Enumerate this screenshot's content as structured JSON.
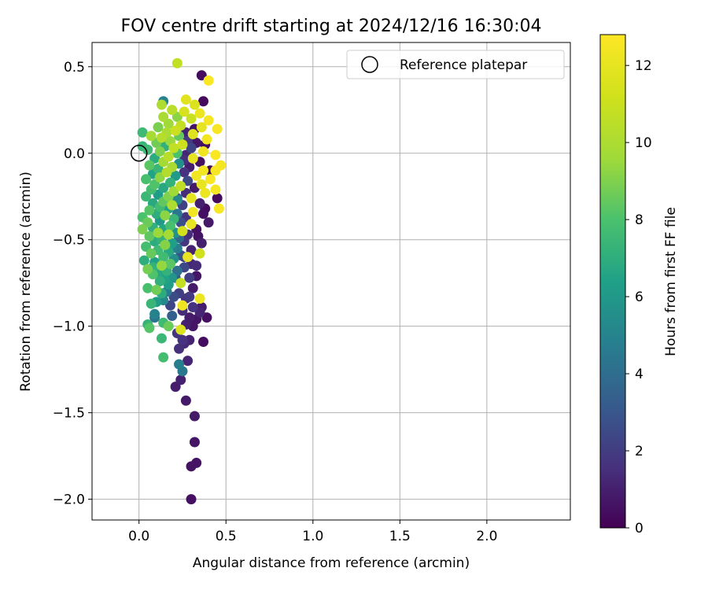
{
  "chart_data": {
    "type": "scatter",
    "title": "FOV centre drift starting at 2024/12/16 16:30:04",
    "xlabel": "Angular distance from reference (arcmin)",
    "ylabel": "Rotation from reference (arcmin)",
    "xlim": [
      -0.27,
      2.48
    ],
    "ylim": [
      -2.12,
      0.64
    ],
    "xticks": [
      0.0,
      0.5,
      1.0,
      1.5,
      2.0
    ],
    "xtick_labels": [
      "0.0",
      "0.5",
      "1.0",
      "1.5",
      "2.0"
    ],
    "yticks": [
      0.5,
      0.0,
      -0.5,
      -1.0,
      -1.5,
      -2.0
    ],
    "ytick_labels": [
      "0.5",
      "0.0",
      "−0.5",
      "−1.0",
      "−1.5",
      "−2.0"
    ],
    "grid": true,
    "legend": {
      "position": "upper right",
      "entries": [
        "Reference platepar"
      ]
    },
    "reference_point": {
      "x": 0.0,
      "y": 0.0
    },
    "colorbar": {
      "label": "Hours from first FF file",
      "colormap": "viridis",
      "range": [
        0,
        12.8
      ],
      "ticks": [
        0,
        2,
        4,
        6,
        8,
        10,
        12
      ],
      "tick_labels": [
        "0",
        "2",
        "4",
        "6",
        "8",
        "10",
        "12"
      ]
    },
    "points": [
      {
        "x": 0.3,
        "y": -2.0,
        "t": 0.5
      },
      {
        "x": 0.3,
        "y": -1.81,
        "t": 0.6
      },
      {
        "x": 0.33,
        "y": -1.79,
        "t": 0.6
      },
      {
        "x": 0.32,
        "y": -1.67,
        "t": 0.7
      },
      {
        "x": 0.32,
        "y": -1.52,
        "t": 0.8
      },
      {
        "x": 0.27,
        "y": -1.43,
        "t": 0.8
      },
      {
        "x": 0.21,
        "y": -1.35,
        "t": 0.9
      },
      {
        "x": 0.24,
        "y": -1.31,
        "t": 1.0
      },
      {
        "x": 0.25,
        "y": -1.26,
        "t": 4.5
      },
      {
        "x": 0.23,
        "y": -1.22,
        "t": 4.8
      },
      {
        "x": 0.28,
        "y": -1.2,
        "t": 1.2
      },
      {
        "x": 0.14,
        "y": -1.18,
        "t": 7.8
      },
      {
        "x": 0.23,
        "y": -1.13,
        "t": 1.5
      },
      {
        "x": 0.26,
        "y": -1.1,
        "t": 1.3
      },
      {
        "x": 0.37,
        "y": -1.09,
        "t": 0.4
      },
      {
        "x": 0.29,
        "y": -1.08,
        "t": 1.1
      },
      {
        "x": 0.13,
        "y": -1.07,
        "t": 7.5
      },
      {
        "x": 0.22,
        "y": -1.04,
        "t": 1.7
      },
      {
        "x": 0.24,
        "y": -1.02,
        "t": 11.6
      },
      {
        "x": 0.06,
        "y": -1.01,
        "t": 8.2
      },
      {
        "x": 0.05,
        "y": -0.99,
        "t": 7.3
      },
      {
        "x": 0.14,
        "y": -0.98,
        "t": 7.6
      },
      {
        "x": 0.17,
        "y": -1.0,
        "t": 8.6
      },
      {
        "x": 0.27,
        "y": -0.99,
        "t": 1.0
      },
      {
        "x": 0.39,
        "y": -0.95,
        "t": 0.5
      },
      {
        "x": 0.33,
        "y": -0.96,
        "t": 0.7
      },
      {
        "x": 0.35,
        "y": -0.92,
        "t": 1.2
      },
      {
        "x": 0.09,
        "y": -0.93,
        "t": 5.0
      },
      {
        "x": 0.25,
        "y": -0.91,
        "t": 1.4
      },
      {
        "x": 0.31,
        "y": -0.89,
        "t": 1.6
      },
      {
        "x": 0.36,
        "y": -0.89,
        "t": 0.9
      },
      {
        "x": 0.25,
        "y": -0.88,
        "t": 12.3
      },
      {
        "x": 0.07,
        "y": -0.87,
        "t": 7.4
      },
      {
        "x": 0.1,
        "y": -0.86,
        "t": 6.1
      },
      {
        "x": 0.14,
        "y": -0.85,
        "t": 5.2
      },
      {
        "x": 0.35,
        "y": -0.84,
        "t": 12.2
      },
      {
        "x": 0.2,
        "y": -0.83,
        "t": 2.6
      },
      {
        "x": 0.29,
        "y": -0.83,
        "t": 1.9
      },
      {
        "x": 0.23,
        "y": -0.81,
        "t": 2.1
      },
      {
        "x": 0.13,
        "y": -0.81,
        "t": 6.9
      },
      {
        "x": 0.1,
        "y": -0.79,
        "t": 8.7
      },
      {
        "x": 0.31,
        "y": -0.78,
        "t": 0.8
      },
      {
        "x": 0.05,
        "y": -0.78,
        "t": 7.9
      },
      {
        "x": 0.17,
        "y": -0.76,
        "t": 6.2
      },
      {
        "x": 0.24,
        "y": -0.75,
        "t": 10.8
      },
      {
        "x": 0.12,
        "y": -0.74,
        "t": 7.1
      },
      {
        "x": 0.15,
        "y": -0.73,
        "t": 6.5
      },
      {
        "x": 0.19,
        "y": -0.72,
        "t": 5.8
      },
      {
        "x": 0.29,
        "y": -0.72,
        "t": 2.0
      },
      {
        "x": 0.33,
        "y": -0.71,
        "t": 0.7
      },
      {
        "x": 0.08,
        "y": -0.7,
        "t": 8.1
      },
      {
        "x": 0.11,
        "y": -0.69,
        "t": 6.7
      },
      {
        "x": 0.16,
        "y": -0.68,
        "t": 7.2
      },
      {
        "x": 0.22,
        "y": -0.68,
        "t": 4.1
      },
      {
        "x": 0.05,
        "y": -0.67,
        "t": 8.8
      },
      {
        "x": 0.26,
        "y": -0.66,
        "t": 2.4
      },
      {
        "x": 0.13,
        "y": -0.65,
        "t": 9.4
      },
      {
        "x": 0.18,
        "y": -0.64,
        "t": 8.3
      },
      {
        "x": 0.3,
        "y": -0.64,
        "t": 1.3
      },
      {
        "x": 0.09,
        "y": -0.63,
        "t": 6.4
      },
      {
        "x": 0.03,
        "y": -0.62,
        "t": 7.0
      },
      {
        "x": 0.2,
        "y": -0.61,
        "t": 5.5
      },
      {
        "x": 0.14,
        "y": -0.6,
        "t": 7.7
      },
      {
        "x": 0.28,
        "y": -0.6,
        "t": 12.1
      },
      {
        "x": 0.35,
        "y": -0.58,
        "t": 11.2
      },
      {
        "x": 0.24,
        "y": -0.59,
        "t": 2.9
      },
      {
        "x": 0.07,
        "y": -0.58,
        "t": 8.5
      },
      {
        "x": 0.17,
        "y": -0.57,
        "t": 6.8
      },
      {
        "x": 0.11,
        "y": -0.56,
        "t": 7.6
      },
      {
        "x": 0.3,
        "y": -0.56,
        "t": 1.1
      },
      {
        "x": 0.22,
        "y": -0.55,
        "t": 4.7
      },
      {
        "x": 0.04,
        "y": -0.54,
        "t": 7.8
      },
      {
        "x": 0.15,
        "y": -0.53,
        "t": 9.1
      },
      {
        "x": 0.19,
        "y": -0.52,
        "t": 6.3
      },
      {
        "x": 0.09,
        "y": -0.51,
        "t": 6.9
      },
      {
        "x": 0.26,
        "y": -0.51,
        "t": 1.8
      },
      {
        "x": 0.13,
        "y": -0.5,
        "t": 7.3
      },
      {
        "x": 0.23,
        "y": -0.49,
        "t": 3.8
      },
      {
        "x": 0.06,
        "y": -0.48,
        "t": 8.4
      },
      {
        "x": 0.17,
        "y": -0.47,
        "t": 9.8
      },
      {
        "x": 0.28,
        "y": -0.47,
        "t": 1.5
      },
      {
        "x": 0.11,
        "y": -0.46,
        "t": 9.5
      },
      {
        "x": 0.21,
        "y": -0.46,
        "t": 5.7
      },
      {
        "x": 0.25,
        "y": -0.45,
        "t": 11.3
      },
      {
        "x": 0.02,
        "y": -0.44,
        "t": 8.9
      },
      {
        "x": 0.14,
        "y": -0.44,
        "t": 6.6
      },
      {
        "x": 0.33,
        "y": -0.44,
        "t": 0.6
      },
      {
        "x": 0.08,
        "y": -0.43,
        "t": 7.1
      },
      {
        "x": 0.18,
        "y": -0.42,
        "t": 7.9
      },
      {
        "x": 0.3,
        "y": -0.41,
        "t": 12.0
      },
      {
        "x": 0.24,
        "y": -0.4,
        "t": 2.7
      },
      {
        "x": 0.05,
        "y": -0.4,
        "t": 8.6
      },
      {
        "x": 0.12,
        "y": -0.39,
        "t": 6.0
      },
      {
        "x": 0.2,
        "y": -0.38,
        "t": 7.4
      },
      {
        "x": 0.02,
        "y": -0.37,
        "t": 8.0
      },
      {
        "x": 0.27,
        "y": -0.37,
        "t": 1.7
      },
      {
        "x": 0.15,
        "y": -0.36,
        "t": 9.2
      },
      {
        "x": 0.1,
        "y": -0.35,
        "t": 7.0
      },
      {
        "x": 0.22,
        "y": -0.35,
        "t": 4.4
      },
      {
        "x": 0.31,
        "y": -0.34,
        "t": 12.4
      },
      {
        "x": 0.06,
        "y": -0.33,
        "t": 8.2
      },
      {
        "x": 0.17,
        "y": -0.32,
        "t": 6.4
      },
      {
        "x": 0.38,
        "y": -0.32,
        "t": 0.4
      },
      {
        "x": 0.46,
        "y": -0.32,
        "t": 12.6
      },
      {
        "x": 0.12,
        "y": -0.31,
        "t": 7.7
      },
      {
        "x": 0.25,
        "y": -0.3,
        "t": 2.2
      },
      {
        "x": 0.19,
        "y": -0.3,
        "t": 10.1
      },
      {
        "x": 0.08,
        "y": -0.29,
        "t": 6.8
      },
      {
        "x": 0.35,
        "y": -0.29,
        "t": 1.0
      },
      {
        "x": 0.14,
        "y": -0.28,
        "t": 8.4
      },
      {
        "x": 0.22,
        "y": -0.27,
        "t": 5.2
      },
      {
        "x": 0.3,
        "y": -0.26,
        "t": 11.9
      },
      {
        "x": 0.45,
        "y": -0.26,
        "t": 0.3
      },
      {
        "x": 0.04,
        "y": -0.25,
        "t": 7.5
      },
      {
        "x": 0.17,
        "y": -0.25,
        "t": 9.0
      },
      {
        "x": 0.11,
        "y": -0.24,
        "t": 6.2
      },
      {
        "x": 0.27,
        "y": -0.23,
        "t": 1.4
      },
      {
        "x": 0.38,
        "y": -0.23,
        "t": 12.2
      },
      {
        "x": 0.2,
        "y": -0.22,
        "t": 9.6
      },
      {
        "x": 0.07,
        "y": -0.21,
        "t": 7.8
      },
      {
        "x": 0.44,
        "y": -0.21,
        "t": 12.5
      },
      {
        "x": 0.14,
        "y": -0.2,
        "t": 6.7
      },
      {
        "x": 0.32,
        "y": -0.2,
        "t": 0.8
      },
      {
        "x": 0.24,
        "y": -0.19,
        "t": 10.6
      },
      {
        "x": 0.09,
        "y": -0.18,
        "t": 8.1
      },
      {
        "x": 0.36,
        "y": -0.18,
        "t": 12.1
      },
      {
        "x": 0.18,
        "y": -0.17,
        "t": 7.2
      },
      {
        "x": 0.28,
        "y": -0.16,
        "t": 2.5
      },
      {
        "x": 0.04,
        "y": -0.15,
        "t": 7.9
      },
      {
        "x": 0.41,
        "y": -0.15,
        "t": 12.7
      },
      {
        "x": 0.12,
        "y": -0.14,
        "t": 9.3
      },
      {
        "x": 0.21,
        "y": -0.13,
        "t": 6.1
      },
      {
        "x": 0.33,
        "y": -0.13,
        "t": 12.3
      },
      {
        "x": 0.08,
        "y": -0.12,
        "t": 6.5
      },
      {
        "x": 0.16,
        "y": -0.11,
        "t": 10.2
      },
      {
        "x": 0.26,
        "y": -0.11,
        "t": 1.6
      },
      {
        "x": 0.44,
        "y": -0.1,
        "t": 12.6
      },
      {
        "x": 0.37,
        "y": -0.1,
        "t": 12.4
      },
      {
        "x": 0.11,
        "y": -0.09,
        "t": 7.4
      },
      {
        "x": 0.19,
        "y": -0.08,
        "t": 9.9
      },
      {
        "x": 0.29,
        "y": -0.08,
        "t": 0.9
      },
      {
        "x": 0.06,
        "y": -0.07,
        "t": 8.3
      },
      {
        "x": 0.47,
        "y": -0.07,
        "t": 12.5
      },
      {
        "x": 0.23,
        "y": -0.06,
        "t": 5.6
      },
      {
        "x": 0.14,
        "y": -0.05,
        "t": 9.7
      },
      {
        "x": 0.35,
        "y": -0.05,
        "t": 0.5
      },
      {
        "x": 0.31,
        "y": -0.03,
        "t": 12.0
      },
      {
        "x": 0.09,
        "y": -0.03,
        "t": 6.9
      },
      {
        "x": 0.17,
        "y": -0.02,
        "t": 10.4
      },
      {
        "x": 0.27,
        "y": -0.01,
        "t": 1.2
      },
      {
        "x": 0.44,
        "y": -0.01,
        "t": 12.7
      },
      {
        "x": 0.22,
        "y": 0.0,
        "t": 8.0
      },
      {
        "x": 0.12,
        "y": 0.01,
        "t": 9.0
      },
      {
        "x": 0.37,
        "y": 0.01,
        "t": 12.3
      },
      {
        "x": 0.05,
        "y": 0.02,
        "t": 7.6
      },
      {
        "x": 0.3,
        "y": 0.03,
        "t": 2.3
      },
      {
        "x": 0.2,
        "y": 0.03,
        "t": 10.7
      },
      {
        "x": 0.15,
        "y": 0.04,
        "t": 7.1
      },
      {
        "x": 0.02,
        "y": 0.04,
        "t": 7.4
      },
      {
        "x": 0.25,
        "y": 0.05,
        "t": 11.1
      },
      {
        "x": 0.1,
        "y": 0.06,
        "t": 8.7
      },
      {
        "x": 0.33,
        "y": 0.06,
        "t": 0.7
      },
      {
        "x": 0.18,
        "y": 0.07,
        "t": 9.5
      },
      {
        "x": 0.28,
        "y": 0.07,
        "t": 1.9
      },
      {
        "x": 0.39,
        "y": 0.08,
        "t": 12.4
      },
      {
        "x": 0.13,
        "y": 0.09,
        "t": 10.3
      },
      {
        "x": 0.23,
        "y": 0.1,
        "t": 8.5
      },
      {
        "x": 0.07,
        "y": 0.1,
        "t": 9.8
      },
      {
        "x": 0.31,
        "y": 0.11,
        "t": 11.7
      },
      {
        "x": 0.16,
        "y": 0.12,
        "t": 10.0
      },
      {
        "x": 0.02,
        "y": 0.12,
        "t": 7.6
      },
      {
        "x": 0.27,
        "y": 0.12,
        "t": 1.1
      },
      {
        "x": 0.21,
        "y": 0.13,
        "t": 11.0
      },
      {
        "x": 0.45,
        "y": 0.14,
        "t": 12.6
      },
      {
        "x": 0.36,
        "y": 0.15,
        "t": 11.9
      },
      {
        "x": 0.11,
        "y": 0.15,
        "t": 8.9
      },
      {
        "x": 0.24,
        "y": 0.16,
        "t": 10.8
      },
      {
        "x": 0.17,
        "y": 0.17,
        "t": 9.6
      },
      {
        "x": 0.4,
        "y": 0.19,
        "t": 12.5
      },
      {
        "x": 0.3,
        "y": 0.2,
        "t": 10.9
      },
      {
        "x": 0.14,
        "y": 0.21,
        "t": 9.9
      },
      {
        "x": 0.22,
        "y": 0.21,
        "t": 9.2
      },
      {
        "x": 0.35,
        "y": 0.23,
        "t": 12.2
      },
      {
        "x": 0.26,
        "y": 0.24,
        "t": 11.4
      },
      {
        "x": 0.19,
        "y": 0.25,
        "t": 10.4
      },
      {
        "x": 0.13,
        "y": 0.28,
        "t": 10.1
      },
      {
        "x": 0.32,
        "y": 0.28,
        "t": 11.6
      },
      {
        "x": 0.14,
        "y": 0.3,
        "t": 5.0
      },
      {
        "x": 0.37,
        "y": 0.3,
        "t": 0.3
      },
      {
        "x": 0.27,
        "y": 0.31,
        "t": 11.8
      },
      {
        "x": 0.4,
        "y": 0.42,
        "t": 12.7
      },
      {
        "x": 0.36,
        "y": 0.45,
        "t": 0.4
      },
      {
        "x": 0.22,
        "y": 0.52,
        "t": 10.7
      },
      {
        "x": 0.4,
        "y": -0.4,
        "t": 0.8
      },
      {
        "x": 0.36,
        "y": -0.52,
        "t": 1.0
      },
      {
        "x": 0.33,
        "y": -0.65,
        "t": 1.4
      },
      {
        "x": 0.27,
        "y": -0.84,
        "t": 1.7
      },
      {
        "x": 0.19,
        "y": -0.94,
        "t": 3.4
      },
      {
        "x": 0.09,
        "y": -0.95,
        "t": 4.2
      },
      {
        "x": 0.16,
        "y": -0.8,
        "t": 4.6
      },
      {
        "x": 0.21,
        "y": -0.72,
        "t": 3.1
      },
      {
        "x": 0.26,
        "y": -0.6,
        "t": 2.0
      },
      {
        "x": 0.34,
        "y": -0.48,
        "t": 0.6
      },
      {
        "x": 0.37,
        "y": -0.35,
        "t": 0.5
      },
      {
        "x": 0.41,
        "y": -0.1,
        "t": 0.3
      },
      {
        "x": 0.38,
        "y": 0.05,
        "t": 0.4
      },
      {
        "x": 0.32,
        "y": 0.14,
        "t": 0.6
      },
      {
        "x": 0.26,
        "y": -0.04,
        "t": 1.5
      },
      {
        "x": 0.22,
        "y": -0.26,
        "t": 3.2
      },
      {
        "x": 0.19,
        "y": -0.55,
        "t": 4.9
      },
      {
        "x": 0.13,
        "y": -0.7,
        "t": 5.6
      },
      {
        "x": 0.08,
        "y": -0.66,
        "t": 7.2
      },
      {
        "x": 0.18,
        "y": -0.88,
        "t": 2.4
      },
      {
        "x": 0.29,
        "y": -0.95,
        "t": 0.9
      },
      {
        "x": 0.25,
        "y": -1.08,
        "t": 1.6
      },
      {
        "x": 0.31,
        "y": -1.0,
        "t": 0.7
      }
    ]
  }
}
